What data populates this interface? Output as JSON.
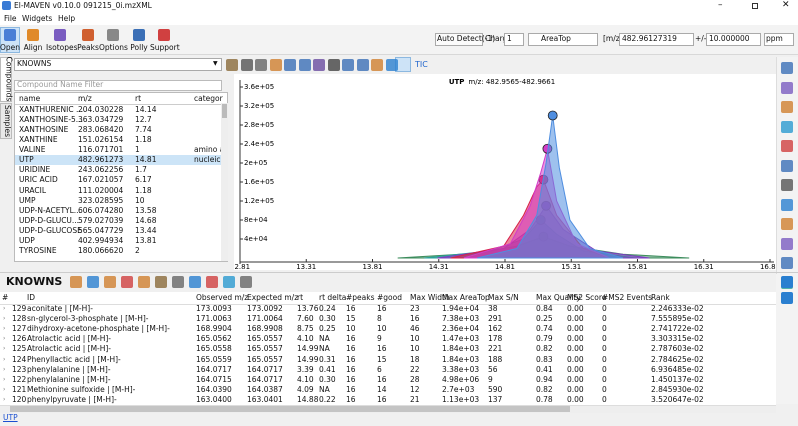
{
  "window": {
    "title": "El-MAVEN v0.10.0 091215_0i.mzXML"
  },
  "menu": [
    "File",
    "Widgets",
    "Help"
  ],
  "toolbar": [
    "Open",
    "Align",
    "Isotopes",
    "Peaks",
    "Options",
    "Polly",
    "Support"
  ],
  "search_bar": {
    "auto_detect": "Auto Detect(-1)",
    "charge_label": "Charge",
    "charge": "1",
    "quant_type": "AreaTop",
    "mz_label": "[m/z]",
    "mz": "482.96127319",
    "tolerance_label": "+/-",
    "tolerance": "10.000000",
    "unit": "ppm"
  },
  "side_tabs": [
    "Compounds",
    "Samples"
  ],
  "compound_db": "KNOWNS",
  "filter_placeholder": "Compound Name Filter",
  "compounds": {
    "columns": [
      "name",
      "m/z",
      "rt",
      "categor"
    ],
    "rows": [
      [
        "XANTHURENIC ...",
        "204.030228",
        "14.14",
        ""
      ],
      [
        "XANTHOSINE-5...",
        "363.034729",
        "12.7",
        ""
      ],
      [
        "XANTHOSINE",
        "283.068420",
        "7.74",
        ""
      ],
      [
        "XANTHINE",
        "151.026154",
        "1.18",
        ""
      ],
      [
        "VALINE",
        "116.071701",
        "1",
        "amino a"
      ],
      [
        "UTP",
        "482.961273",
        "14.81",
        "nucleic"
      ],
      [
        "URIDINE",
        "243.062256",
        "1.7",
        ""
      ],
      [
        "URIC ACID",
        "167.021057",
        "6.17",
        ""
      ],
      [
        "URACIL",
        "111.020004",
        "1.18",
        ""
      ],
      [
        "UMP",
        "323.028595",
        "10",
        ""
      ],
      [
        "UDP-N-ACETYL...",
        "606.074280",
        "13.58",
        ""
      ],
      [
        "UDP-D-GLUCU...",
        "579.027039",
        "14.68",
        ""
      ],
      [
        "UDP-D-GLUCOSE",
        "565.047729",
        "13.44",
        ""
      ],
      [
        "UDP",
        "402.994934",
        "13.81",
        ""
      ],
      [
        "TYROSINE",
        "180.066620",
        "2",
        ""
      ]
    ]
  },
  "chart_button": "TIC",
  "chart": {
    "type": "area",
    "title": "UTP",
    "subtitle": "m/z: 482.9565-482.9661",
    "xlim": [
      12.81,
      16.81
    ],
    "ylim": [
      0,
      360000
    ],
    "xticks": [
      12.81,
      13.31,
      13.81,
      14.31,
      14.81,
      15.31,
      15.81,
      16.31,
      16.81
    ],
    "yticks": [
      {
        "value": 40000,
        "label": "4e+04"
      },
      {
        "value": 80000,
        "label": "8e+04"
      },
      {
        "value": 120000,
        "label": "1.2e+05"
      },
      {
        "value": 160000,
        "label": "1.6e+05"
      },
      {
        "value": 200000,
        "label": "2e+05"
      },
      {
        "value": 240000,
        "label": "2.4e+05"
      },
      {
        "value": 280000,
        "label": "2.8e+05"
      },
      {
        "value": 320000,
        "label": "3.2e+05"
      },
      {
        "value": 360000,
        "label": "3.6e+05"
      }
    ],
    "series": [
      {
        "color": "#3c8c5c",
        "x": [
          14.0,
          14.6,
          14.9,
          15.1,
          15.3,
          15.7,
          16.2
        ],
        "values": [
          0,
          10000,
          25000,
          45000,
          25000,
          8000,
          0
        ]
      },
      {
        "color": "#2aa198",
        "x": [
          14.2,
          14.7,
          14.95,
          15.08,
          15.2,
          15.4,
          15.8
        ],
        "values": [
          0,
          15000,
          40000,
          80000,
          50000,
          15000,
          0
        ]
      },
      {
        "color": "#7a3fc0",
        "x": [
          14.3,
          14.8,
          15.0,
          15.12,
          15.25,
          15.5,
          15.9
        ],
        "values": [
          0,
          20000,
          60000,
          110000,
          60000,
          15000,
          0
        ]
      },
      {
        "color": "#d8204a",
        "x": [
          14.4,
          14.8,
          14.95,
          15.05,
          15.1,
          15.2,
          15.4,
          15.6
        ],
        "values": [
          0,
          25000,
          90000,
          150000,
          165000,
          90000,
          20000,
          0
        ]
      },
      {
        "color": "#d33cc8",
        "x": [
          14.5,
          14.85,
          15.0,
          15.08,
          15.13,
          15.2,
          15.35,
          15.6
        ],
        "values": [
          0,
          30000,
          110000,
          180000,
          230000,
          120000,
          30000,
          0
        ]
      },
      {
        "color": "#4f8ee0",
        "x": [
          14.6,
          14.9,
          15.05,
          15.12,
          15.17,
          15.22,
          15.3,
          15.45,
          15.7
        ],
        "values": [
          0,
          20000,
          90000,
          200000,
          300000,
          190000,
          80000,
          20000,
          0
        ]
      }
    ]
  },
  "results": {
    "title": "KNOWNS",
    "columns": [
      "#",
      "ID",
      "Observed m/z",
      "Expected m/z",
      "rt",
      "rt delta",
      "#peaks",
      "#good",
      "Max Width",
      "Max AreaTop",
      "Max S/N",
      "Max Quality",
      "MS2 Score",
      "#MS2 Events",
      "Rank"
    ],
    "rows": [
      [
        "129",
        "aconitate | [M-H]-",
        "173.0093",
        "173.0092",
        "13.76",
        "0.24",
        "16",
        "16",
        "23",
        "1.94e+04",
        "38",
        "0.84",
        "0.00",
        "0",
        "2.246333e-02"
      ],
      [
        "128",
        "sn-glycerol-3-phosphate | [M-H]-",
        "171.0063",
        "171.0064",
        "7.60",
        "0.30",
        "15",
        "8",
        "16",
        "7.38e+03",
        "291",
        "0.25",
        "0.00",
        "0",
        "7.555895e-02"
      ],
      [
        "127",
        "dihydroxy-acetone-phosphate | [M-H]-",
        "168.9904",
        "168.9908",
        "8.75",
        "0.25",
        "10",
        "10",
        "46",
        "2.36e+04",
        "162",
        "0.74",
        "0.00",
        "0",
        "2.741722e-02"
      ],
      [
        "126",
        "Atrolactic acid | [M-H]-",
        "165.0562",
        "165.0557",
        "4.10",
        "NA",
        "16",
        "9",
        "10",
        "1.47e+03",
        "178",
        "0.79",
        "0.00",
        "0",
        "3.303315e-02"
      ],
      [
        "125",
        "Atrolactic acid | [M-H]-",
        "165.0558",
        "165.0557",
        "14.99",
        "NA",
        "16",
        "16",
        "10",
        "1.84e+03",
        "221",
        "0.82",
        "0.00",
        "0",
        "2.787603e-02"
      ],
      [
        "124",
        "Phenyllactic acid | [M-H]-",
        "165.0559",
        "165.0557",
        "14.99",
        "0.31",
        "16",
        "15",
        "18",
        "1.84e+03",
        "188",
        "0.83",
        "0.00",
        "0",
        "2.784625e-02"
      ],
      [
        "123",
        "phenylalanine | [M-H]-",
        "164.0717",
        "164.0717",
        "3.39",
        "0.41",
        "16",
        "6",
        "22",
        "3.38e+03",
        "56",
        "0.41",
        "0.00",
        "0",
        "6.936485e-02"
      ],
      [
        "122",
        "phenylalanine | [M-H]-",
        "164.0715",
        "164.0717",
        "4.10",
        "0.30",
        "16",
        "16",
        "28",
        "4.98e+06",
        "9",
        "0.94",
        "0.00",
        "0",
        "1.450137e-02"
      ],
      [
        "121",
        "Methionine sulfoxide | [M-H]-",
        "164.0390",
        "164.0387",
        "4.09",
        "NA",
        "16",
        "14",
        "12",
        "2.7e+03",
        "590",
        "0.82",
        "0.00",
        "0",
        "2.845930e-02"
      ],
      [
        "120",
        "phenylpyruvate | [M-H]-",
        "163.0400",
        "163.0401",
        "14.88",
        "0.22",
        "16",
        "16",
        "21",
        "1.13e+03",
        "137",
        "0.78",
        "0.00",
        "0",
        "3.520647e-02"
      ]
    ]
  },
  "status": "UTP"
}
